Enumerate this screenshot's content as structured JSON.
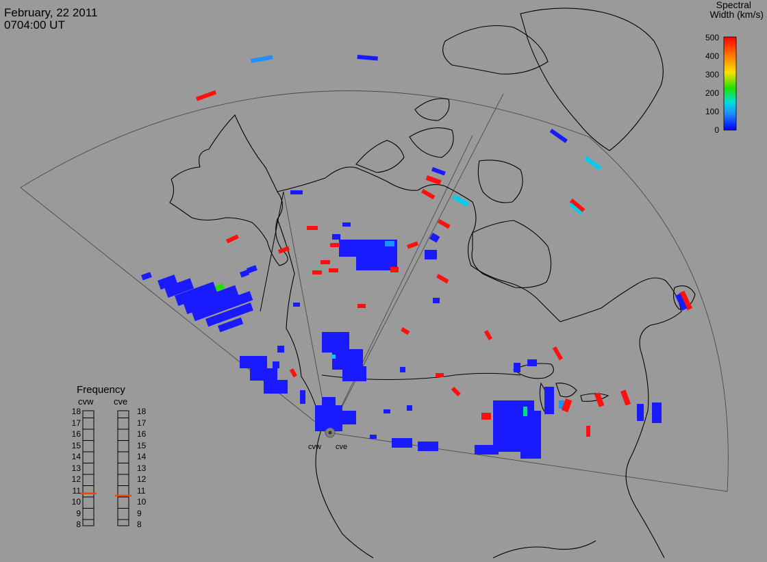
{
  "header": {
    "date": "February, 22 2011",
    "time": "0704:00 UT"
  },
  "colorbar": {
    "title_line1": "Spectral",
    "title_line2": "Width (km/s)",
    "ticks": [
      "500",
      "400",
      "300",
      "200",
      "100",
      "0"
    ],
    "colors": [
      "#ff0000",
      "#ff7a00",
      "#ffe000",
      "#20e000",
      "#00e0e0",
      "#1e90ff",
      "#0000ff"
    ]
  },
  "frequency": {
    "title": "Frequency",
    "left_label": "cvw",
    "right_label": "cve",
    "ticks": [
      "18",
      "17",
      "16",
      "15",
      "14",
      "13",
      "12",
      "11",
      "10",
      "9",
      "8"
    ],
    "cvw_value": 10.8,
    "cve_value": 10.6,
    "marker_color": "#ff4000"
  },
  "radars": {
    "west": "cvw",
    "east": "cve"
  }
}
